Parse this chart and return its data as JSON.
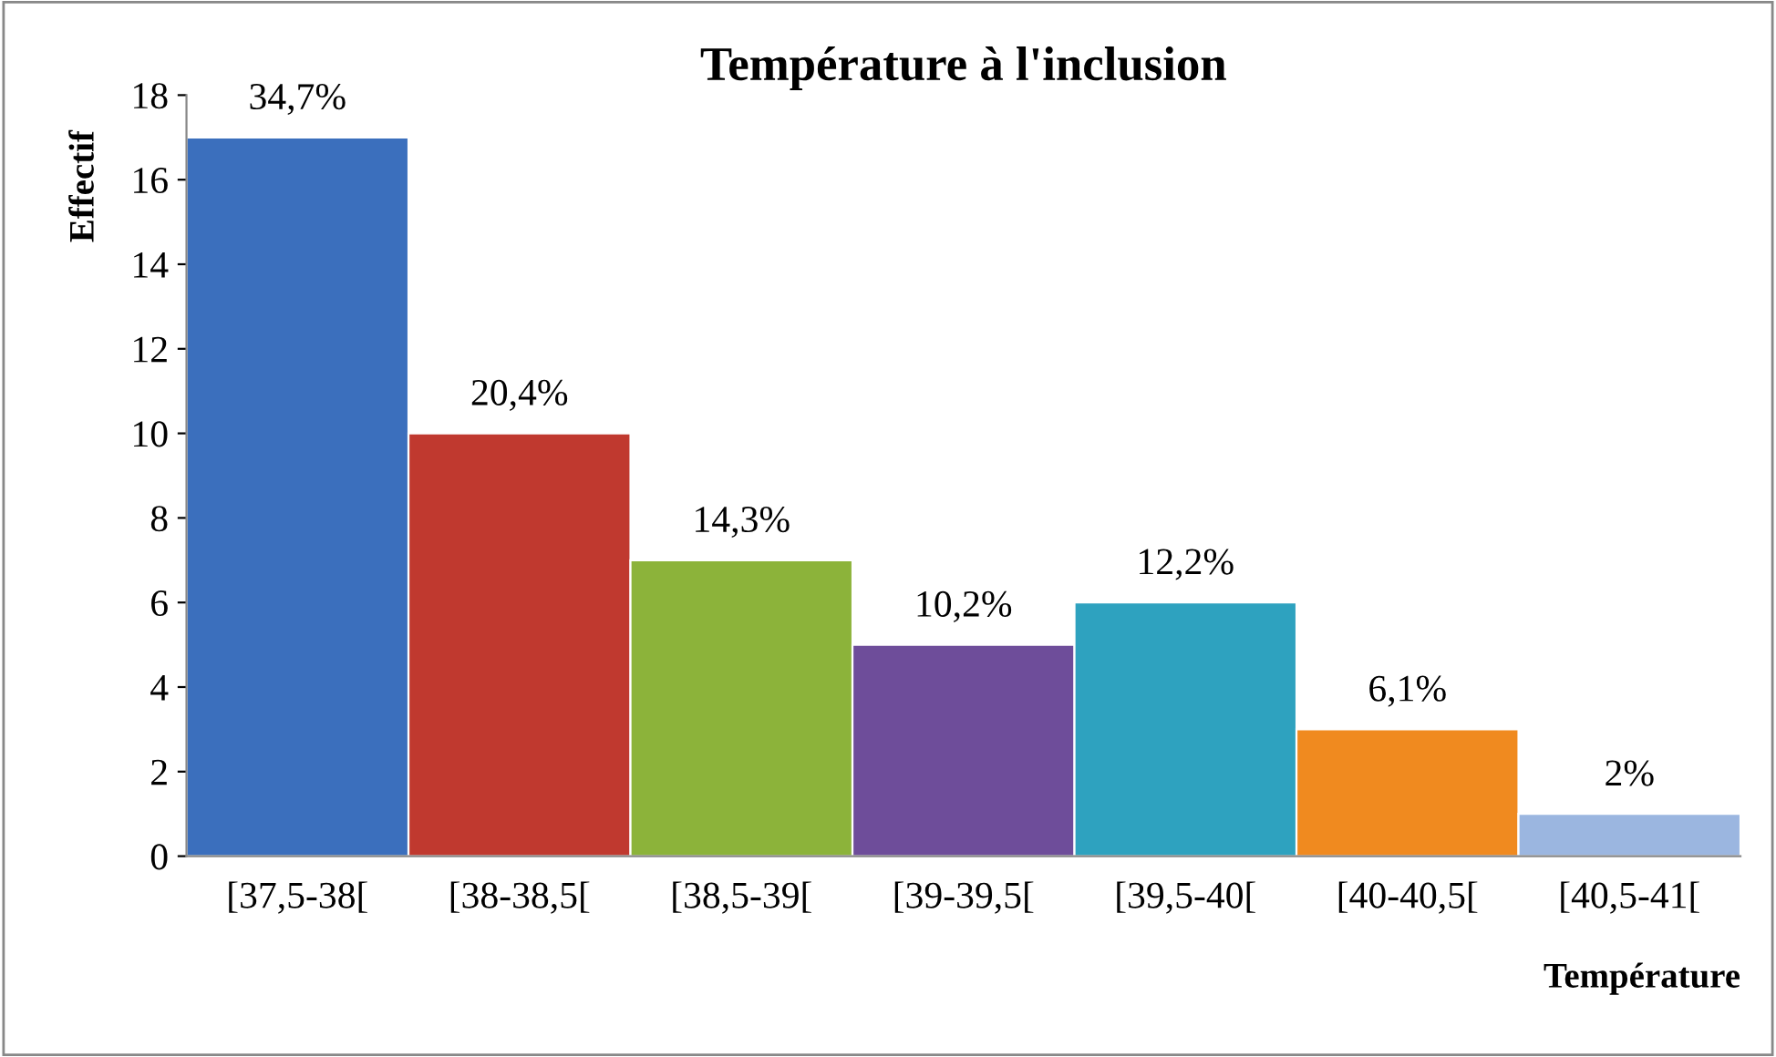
{
  "chart_data": {
    "type": "bar",
    "title": "Température à l'inclusion",
    "xlabel": "Température",
    "ylabel": "Effectif",
    "categories": [
      "[37,5-38[",
      "[38-38,5[",
      "[38,5-39[",
      "[39-39,5[",
      "[39,5-40[",
      "[40-40,5[",
      "[40,5-41["
    ],
    "values": [
      17,
      10,
      7,
      5,
      6,
      3,
      1
    ],
    "colors": [
      "#3b6fbd",
      "#c0392f",
      "#8cb33a",
      "#6e4d9a",
      "#2ea2bf",
      "#f08a1f",
      "#9bb6e0"
    ],
    "annotations": [
      {
        "text": "34,7%",
        "x": "[37,5-38[",
        "y": 17
      },
      {
        "text": "20,4%",
        "x": "[38-38,5[",
        "y": 10
      },
      {
        "text": "14,3%",
        "x": "[38,5-39[",
        "y": 7
      },
      {
        "text": "10,2%",
        "x": "[39-39,5[",
        "y": 5
      },
      {
        "text": "12,2%",
        "x": "[39,5-40[",
        "y": 6
      },
      {
        "text": "6,1%",
        "x": "[40-40,5[",
        "y": 3
      },
      {
        "text": "2%",
        "x": "[40,5-41[",
        "y": 1
      }
    ],
    "ylim": [
      0,
      18
    ],
    "yticks": [
      0,
      2,
      4,
      6,
      8,
      10,
      12,
      14,
      16,
      18
    ],
    "grid": false,
    "legend": false
  }
}
